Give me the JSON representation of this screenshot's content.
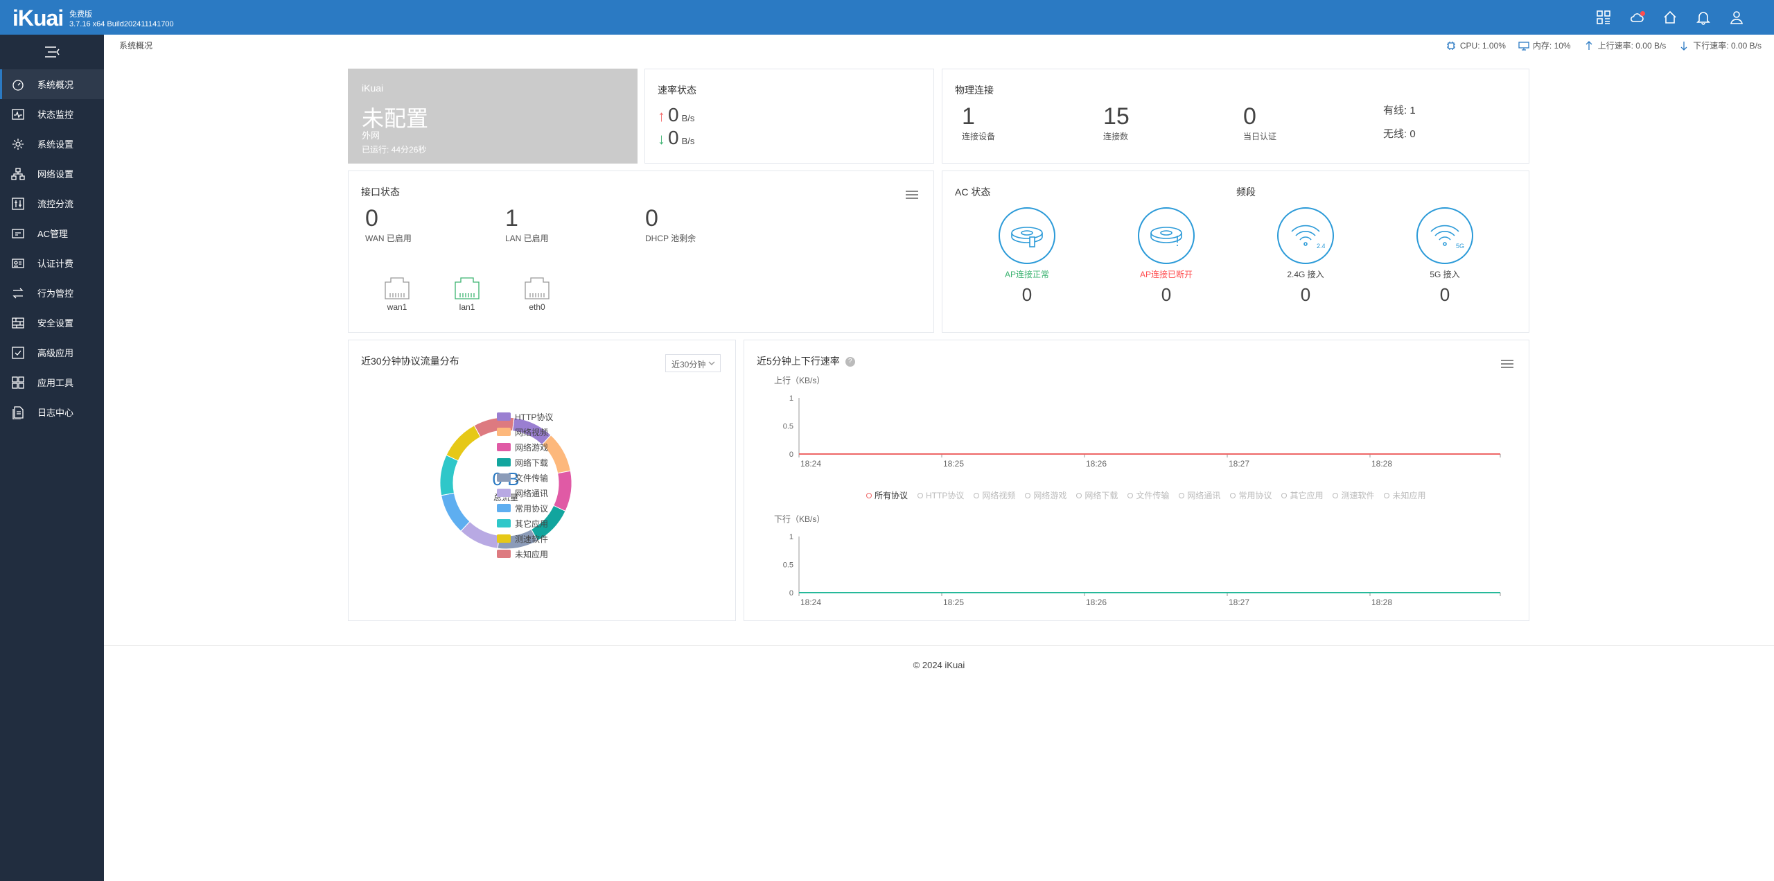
{
  "header": {
    "logo": "iKuai",
    "edition": "免费版",
    "version": "3.7.16 x64 Build202411141700",
    "icons": [
      "apps-grid-icon",
      "cloud-icon",
      "home-icon",
      "bell-icon",
      "user-icon"
    ]
  },
  "sidebar": {
    "items": [
      {
        "label": "系统概况",
        "icon": "dashboard-icon",
        "active": true
      },
      {
        "label": "状态监控",
        "icon": "monitor-icon"
      },
      {
        "label": "系统设置",
        "icon": "gear-icon"
      },
      {
        "label": "网络设置",
        "icon": "network-icon"
      },
      {
        "label": "流控分流",
        "icon": "sliders-icon"
      },
      {
        "label": "AC管理",
        "icon": "router-icon"
      },
      {
        "label": "认证计费",
        "icon": "id-card-icon"
      },
      {
        "label": "行为管控",
        "icon": "swap-icon"
      },
      {
        "label": "安全设置",
        "icon": "firewall-icon"
      },
      {
        "label": "高级应用",
        "icon": "checkbox-icon"
      },
      {
        "label": "应用工具",
        "icon": "tools-icon"
      },
      {
        "label": "日志中心",
        "icon": "log-icon"
      }
    ]
  },
  "breadcrumb": "系统概况",
  "status": {
    "cpu": "CPU: 1.00%",
    "mem": "内存: 10%",
    "up": "上行速率: 0.00 B/s",
    "down": "下行速率: 0.00 B/s"
  },
  "router": {
    "brand": "iKuai",
    "status": "未配置",
    "wan": "外网",
    "uptime": "已运行: 44分26秒"
  },
  "rate": {
    "title": "速率状态",
    "up_value": "0",
    "down_value": "0",
    "unit": "B/s"
  },
  "physical": {
    "title": "物理连接",
    "devices": "1",
    "devices_label": "连接设备",
    "connections": "15",
    "connections_label": "连接数",
    "auth": "0",
    "auth_label": "当日认证",
    "wired": "有线: 1",
    "wireless": "无线: 0"
  },
  "interface": {
    "title": "接口状态",
    "wan": "0",
    "wan_label": "WAN 已启用",
    "lan": "1",
    "lan_label": "LAN 已启用",
    "dhcp": "0",
    "dhcp_label": "DHCP 池剩余",
    "ports": [
      {
        "name": "wan1",
        "active": false
      },
      {
        "name": "lan1",
        "active": true
      },
      {
        "name": "eth0",
        "active": false
      }
    ]
  },
  "ac": {
    "title": "AC 状态",
    "band_title": "频段",
    "items": [
      {
        "label": "AP连接正常",
        "count": "0",
        "color": "#3cb371"
      },
      {
        "label": "AP连接已断开",
        "count": "0",
        "color": "#ff4d4f"
      },
      {
        "label": "2.4G 接入",
        "count": "0",
        "color": "#444444",
        "badge": "2.4G"
      },
      {
        "label": "5G 接入",
        "count": "0",
        "color": "#444444",
        "badge": "5G"
      }
    ]
  },
  "protocol": {
    "title": "近30分钟协议流量分布",
    "range": "近30分钟",
    "total_value": "0 B",
    "total_label": "总流量",
    "legend": [
      {
        "name": "HTTP协议",
        "color": "#9a7fd1"
      },
      {
        "name": "网络视频",
        "color": "#fdb87c"
      },
      {
        "name": "网络游戏",
        "color": "#e05aa5"
      },
      {
        "name": "网络下载",
        "color": "#12a59e"
      },
      {
        "name": "文件传输",
        "color": "#8b9bb8"
      },
      {
        "name": "网络通讯",
        "color": "#b8a9e3"
      },
      {
        "name": "常用协议",
        "color": "#5eaef0"
      },
      {
        "name": "其它应用",
        "color": "#2fc7c9"
      },
      {
        "name": "测速软件",
        "color": "#e6c817"
      },
      {
        "name": "未知应用",
        "color": "#dd7a80"
      }
    ]
  },
  "speed": {
    "title": "近5分钟上下行速率",
    "series_legend": [
      "所有协议",
      "HTTP协议",
      "网络视频",
      "网络游戏",
      "网络下载",
      "文件传输",
      "网络通讯",
      "常用协议",
      "其它应用",
      "测速软件",
      "未知应用"
    ]
  },
  "chart_data": [
    {
      "type": "line",
      "title": "",
      "ylabel": "上行（KB/s）",
      "x": [
        "18:24",
        "18:25",
        "18:26",
        "18:27",
        "18:28"
      ],
      "yticks": [
        "1",
        "0.5",
        "0"
      ],
      "ylim": [
        0,
        1
      ],
      "series": [
        {
          "name": "所有协议",
          "values": [
            0,
            0,
            0,
            0,
            0
          ],
          "color": "#ee6666"
        }
      ]
    },
    {
      "type": "line",
      "title": "",
      "ylabel": "下行（KB/s）",
      "x": [
        "18:24",
        "18:25",
        "18:26",
        "18:27",
        "18:28"
      ],
      "yticks": [
        "1",
        "0.5",
        "0"
      ],
      "ylim": [
        0,
        1
      ],
      "series": [
        {
          "name": "所有协议",
          "values": [
            0,
            0,
            0,
            0,
            0
          ],
          "color": "#26b99a"
        }
      ]
    },
    {
      "type": "pie",
      "title": "近30分钟协议流量分布",
      "categories": [
        "HTTP协议",
        "网络视频",
        "网络游戏",
        "网络下载",
        "文件传输",
        "网络通讯",
        "常用协议",
        "其它应用",
        "测速软件",
        "未知应用"
      ],
      "values": [
        0,
        0,
        0,
        0,
        0,
        0,
        0,
        0,
        0,
        0
      ]
    }
  ],
  "footer": "© 2024 iKuai"
}
